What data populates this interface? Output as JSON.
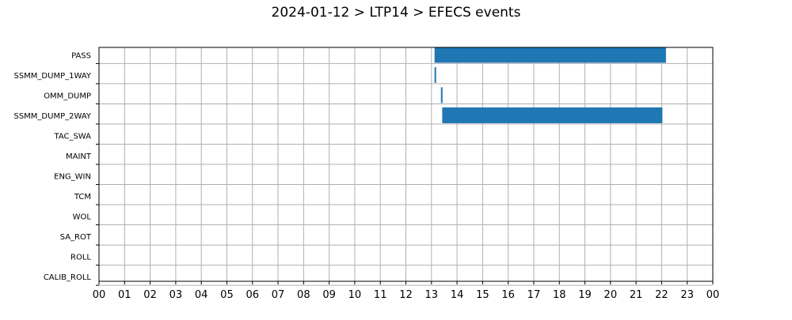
{
  "chart_data": {
    "type": "bar",
    "orientation": "horizontal",
    "title": "2024-01-12 > LTP14 > EFECS events",
    "xlabel": "",
    "ylabel": "",
    "x_tick_labels": [
      "00",
      "01",
      "02",
      "03",
      "04",
      "05",
      "06",
      "07",
      "08",
      "09",
      "10",
      "11",
      "12",
      "13",
      "14",
      "15",
      "16",
      "17",
      "18",
      "19",
      "20",
      "21",
      "22",
      "23",
      "00"
    ],
    "xlim": [
      0,
      24
    ],
    "grid": true,
    "bar_color": "#1f77b4",
    "categories": [
      "PASS",
      "SSMM_DUMP_1WAY",
      "OMM_DUMP",
      "SSMM_DUMP_2WAY",
      "TAC_SWA",
      "MAINT",
      "ENG_WIN",
      "TCM",
      "WOL",
      "SA_ROT",
      "ROLL",
      "CALIB_ROLL"
    ],
    "events": [
      {
        "category": "PASS",
        "start": 13.12,
        "end": 22.17
      },
      {
        "category": "SSMM_DUMP_1WAY",
        "start": 13.12,
        "end": 13.17
      },
      {
        "category": "OMM_DUMP",
        "start": 13.37,
        "end": 13.42
      },
      {
        "category": "SSMM_DUMP_2WAY",
        "start": 13.42,
        "end": 22.03
      }
    ]
  }
}
